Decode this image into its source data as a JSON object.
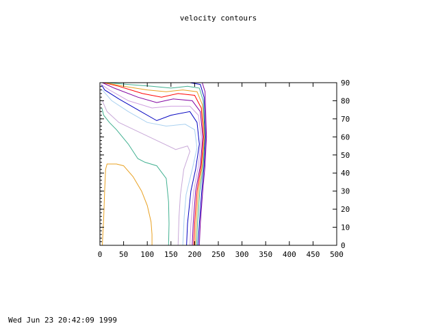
{
  "chart_data": {
    "type": "contour",
    "title": "velocity contours",
    "xlabel": "",
    "ylabel": "",
    "xlim": [
      0,
      500
    ],
    "ylim": [
      0,
      90
    ],
    "x_ticks": [
      "0",
      "50",
      "100",
      "150",
      "200",
      "250",
      "300",
      "350",
      "400",
      "450",
      "500"
    ],
    "y_ticks": [
      "0",
      "10",
      "20",
      "30",
      "40",
      "50",
      "60",
      "70",
      "80",
      "90"
    ],
    "y_axis_side": "right",
    "grid": false,
    "legend": "none",
    "contours": [
      {
        "color": "#e8a020",
        "points": [
          [
            110,
            0
          ],
          [
            110,
            6
          ],
          [
            108,
            13
          ],
          [
            100,
            22
          ],
          [
            88,
            30
          ],
          [
            70,
            38
          ],
          [
            50,
            44
          ],
          [
            35,
            45
          ],
          [
            15,
            45
          ],
          [
            12,
            42
          ],
          [
            10,
            30
          ],
          [
            8,
            15
          ],
          [
            5,
            0
          ]
        ]
      },
      {
        "color": "#40b090",
        "points": [
          [
            145,
            0
          ],
          [
            146,
            12
          ],
          [
            145,
            24
          ],
          [
            140,
            37
          ],
          [
            120,
            44
          ],
          [
            95,
            46
          ],
          [
            80,
            48
          ],
          [
            60,
            56
          ],
          [
            35,
            64
          ],
          [
            20,
            68
          ],
          [
            8,
            72
          ],
          [
            4,
            76
          ]
        ]
      },
      {
        "color": "#c8a8d8",
        "points": [
          [
            165,
            0
          ],
          [
            167,
            16
          ],
          [
            170,
            28
          ],
          [
            177,
            42
          ],
          [
            190,
            52
          ],
          [
            185,
            55
          ],
          [
            160,
            53
          ],
          [
            120,
            58
          ],
          [
            80,
            63
          ],
          [
            40,
            68
          ],
          [
            15,
            74
          ],
          [
            5,
            80
          ]
        ]
      },
      {
        "color": "#a8d0f0",
        "points": [
          [
            175,
            0
          ],
          [
            178,
            16
          ],
          [
            182,
            28
          ],
          [
            195,
            42
          ],
          [
            205,
            54
          ],
          [
            200,
            64
          ],
          [
            180,
            67
          ],
          [
            140,
            66
          ],
          [
            100,
            68
          ],
          [
            60,
            74
          ],
          [
            25,
            80
          ],
          [
            5,
            86
          ]
        ]
      },
      {
        "color": "#0000c0",
        "points": [
          [
            183,
            0
          ],
          [
            185,
            12
          ],
          [
            192,
            30
          ],
          [
            202,
            42
          ],
          [
            210,
            56
          ],
          [
            205,
            68
          ],
          [
            190,
            74
          ],
          [
            150,
            72
          ],
          [
            120,
            69
          ],
          [
            80,
            75
          ],
          [
            40,
            81
          ],
          [
            10,
            86
          ],
          [
            3,
            89
          ]
        ]
      },
      {
        "color": "#d0a0e0",
        "points": [
          [
            190,
            0
          ],
          [
            192,
            12
          ],
          [
            198,
            30
          ],
          [
            208,
            44
          ],
          [
            214,
            60
          ],
          [
            208,
            72
          ],
          [
            190,
            77
          ],
          [
            150,
            77
          ],
          [
            110,
            76
          ],
          [
            60,
            80
          ],
          [
            20,
            86
          ],
          [
            3,
            89
          ]
        ]
      },
      {
        "color": "#8000a0",
        "points": [
          [
            195,
            0
          ],
          [
            197,
            12
          ],
          [
            202,
            30
          ],
          [
            212,
            44
          ],
          [
            217,
            60
          ],
          [
            212,
            74
          ],
          [
            195,
            80
          ],
          [
            155,
            81
          ],
          [
            120,
            79
          ],
          [
            80,
            82
          ],
          [
            30,
            87
          ],
          [
            5,
            90
          ]
        ]
      },
      {
        "color": "#ff0000",
        "points": [
          [
            198,
            0
          ],
          [
            200,
            12
          ],
          [
            205,
            30
          ],
          [
            214,
            44
          ],
          [
            219,
            60
          ],
          [
            214,
            76
          ],
          [
            200,
            83
          ],
          [
            165,
            84
          ],
          [
            130,
            82
          ],
          [
            90,
            84
          ],
          [
            40,
            88
          ],
          [
            8,
            90
          ]
        ]
      },
      {
        "color": "#e8a020",
        "points": [
          [
            201,
            0
          ],
          [
            203,
            12
          ],
          [
            208,
            30
          ],
          [
            216,
            44
          ],
          [
            221,
            60
          ],
          [
            216,
            78
          ],
          [
            205,
            85
          ],
          [
            175,
            86
          ],
          [
            140,
            85
          ],
          [
            100,
            86
          ],
          [
            50,
            88
          ],
          [
            10,
            90
          ]
        ]
      },
      {
        "color": "#40b090",
        "points": [
          [
            204,
            0
          ],
          [
            206,
            12
          ],
          [
            211,
            30
          ],
          [
            218,
            44
          ],
          [
            222,
            60
          ],
          [
            218,
            80
          ],
          [
            210,
            87
          ],
          [
            185,
            88
          ],
          [
            150,
            87
          ],
          [
            110,
            88
          ],
          [
            60,
            89
          ],
          [
            15,
            90
          ]
        ]
      },
      {
        "color": "#0000c0",
        "points": [
          [
            207,
            0
          ],
          [
            210,
            12
          ],
          [
            215,
            30
          ],
          [
            220,
            44
          ],
          [
            223,
            60
          ],
          [
            220,
            82
          ],
          [
            212,
            89
          ],
          [
            190,
            90
          ]
        ]
      },
      {
        "color": "#8000a0",
        "points": [
          [
            210,
            0
          ],
          [
            212,
            12
          ],
          [
            217,
            30
          ],
          [
            222,
            44
          ],
          [
            225,
            60
          ],
          [
            222,
            85
          ],
          [
            216,
            90
          ],
          [
            200,
            90
          ]
        ]
      }
    ]
  },
  "timestamp": "Wed Jun 23 20:42:09 1999"
}
